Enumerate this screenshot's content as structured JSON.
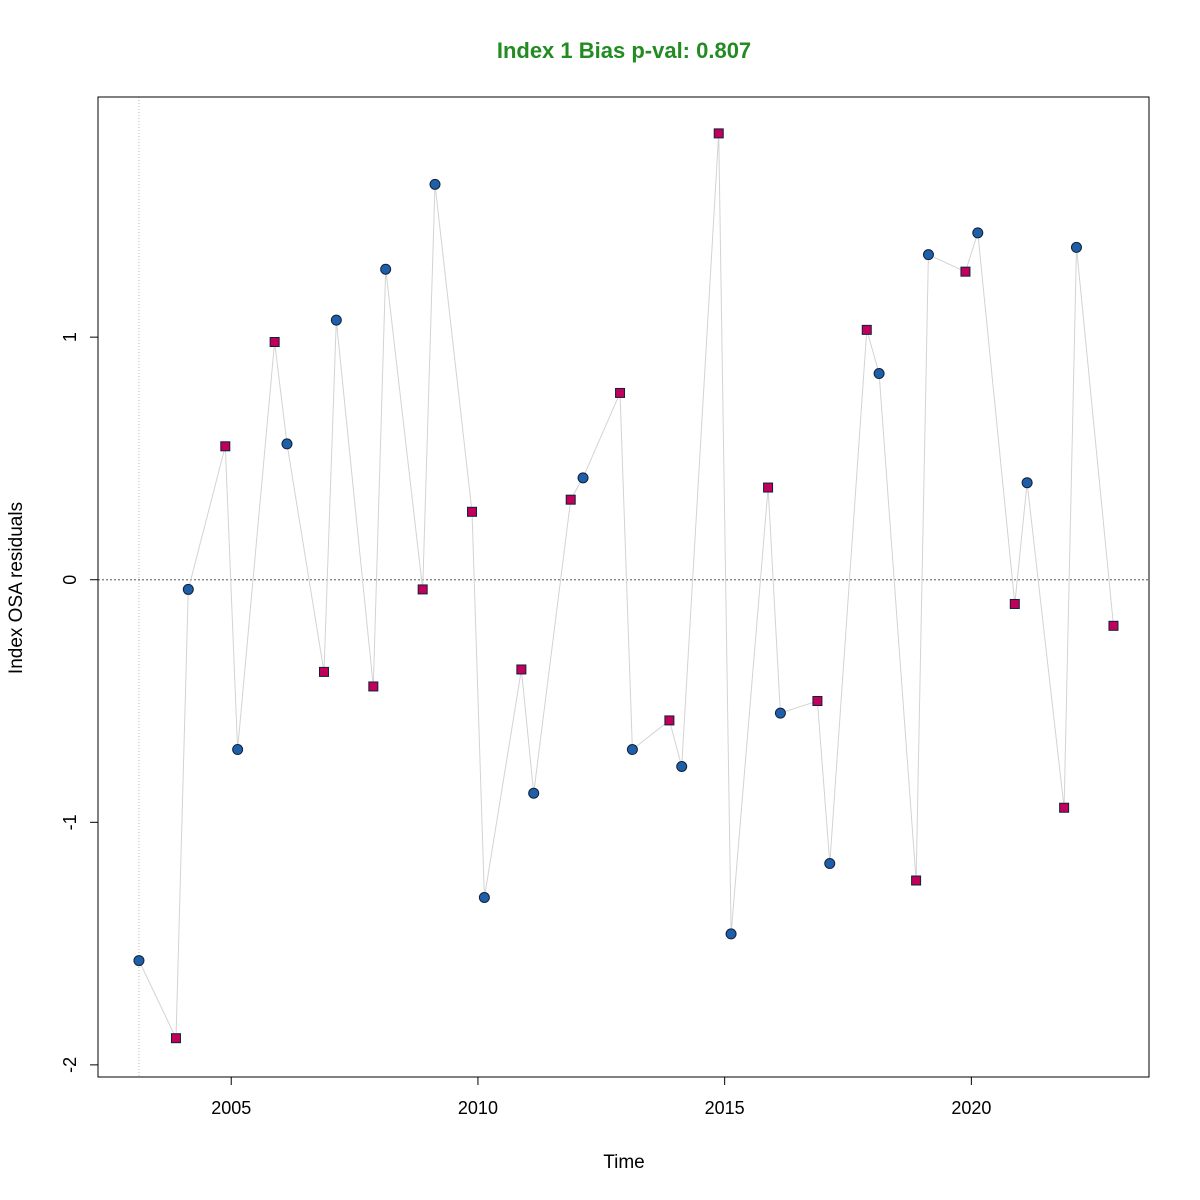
{
  "chart_data": {
    "type": "scatter",
    "title": "Index 1 Bias p-val: 0.807",
    "xlabel": "Time",
    "ylabel": "Index OSA residuals",
    "xlim": [
      2002.3,
      2023.6
    ],
    "ylim": [
      -2.05,
      1.99
    ],
    "x_ticks": [
      2005,
      2010,
      2015,
      2020
    ],
    "y_ticks": [
      -2,
      -1,
      0,
      1
    ],
    "reference_hline": 0,
    "reference_vline": 2003.13,
    "colors": {
      "title": "#228b22",
      "circle_fill": "#1f5fa8",
      "square_fill": "#c0005a",
      "marker_edge": "#10213a",
      "line": "#d3d3d3",
      "ref_line": "#777777"
    },
    "points": [
      {
        "x": 2003.13,
        "y": -1.57,
        "shape": "circle"
      },
      {
        "x": 2003.88,
        "y": -1.89,
        "shape": "square"
      },
      {
        "x": 2004.13,
        "y": -0.04,
        "shape": "circle"
      },
      {
        "x": 2004.88,
        "y": 0.55,
        "shape": "square"
      },
      {
        "x": 2005.13,
        "y": -0.7,
        "shape": "circle"
      },
      {
        "x": 2005.88,
        "y": 0.98,
        "shape": "square"
      },
      {
        "x": 2006.13,
        "y": 0.56,
        "shape": "circle"
      },
      {
        "x": 2006.88,
        "y": -0.38,
        "shape": "square"
      },
      {
        "x": 2007.13,
        "y": 1.07,
        "shape": "circle"
      },
      {
        "x": 2007.88,
        "y": -0.44,
        "shape": "square"
      },
      {
        "x": 2008.13,
        "y": 1.28,
        "shape": "circle"
      },
      {
        "x": 2008.88,
        "y": -0.04,
        "shape": "square"
      },
      {
        "x": 2009.13,
        "y": 1.63,
        "shape": "circle"
      },
      {
        "x": 2009.88,
        "y": 0.28,
        "shape": "square"
      },
      {
        "x": 2010.13,
        "y": -1.31,
        "shape": "circle"
      },
      {
        "x": 2010.88,
        "y": -0.37,
        "shape": "square"
      },
      {
        "x": 2011.13,
        "y": -0.88,
        "shape": "circle"
      },
      {
        "x": 2011.88,
        "y": 0.33,
        "shape": "square"
      },
      {
        "x": 2012.13,
        "y": 0.42,
        "shape": "circle"
      },
      {
        "x": 2012.88,
        "y": 0.77,
        "shape": "square"
      },
      {
        "x": 2013.13,
        "y": -0.7,
        "shape": "circle"
      },
      {
        "x": 2013.88,
        "y": -0.58,
        "shape": "square"
      },
      {
        "x": 2014.13,
        "y": -0.77,
        "shape": "circle"
      },
      {
        "x": 2014.88,
        "y": 1.84,
        "shape": "square"
      },
      {
        "x": 2015.13,
        "y": -1.46,
        "shape": "circle"
      },
      {
        "x": 2015.88,
        "y": 0.38,
        "shape": "square"
      },
      {
        "x": 2016.13,
        "y": -0.55,
        "shape": "circle"
      },
      {
        "x": 2016.88,
        "y": -0.5,
        "shape": "square"
      },
      {
        "x": 2017.13,
        "y": -1.17,
        "shape": "circle"
      },
      {
        "x": 2017.88,
        "y": 1.03,
        "shape": "square"
      },
      {
        "x": 2018.13,
        "y": 0.85,
        "shape": "circle"
      },
      {
        "x": 2018.88,
        "y": -1.24,
        "shape": "square"
      },
      {
        "x": 2019.13,
        "y": 1.34,
        "shape": "circle"
      },
      {
        "x": 2019.88,
        "y": 1.27,
        "shape": "square"
      },
      {
        "x": 2020.13,
        "y": 1.43,
        "shape": "circle"
      },
      {
        "x": 2020.88,
        "y": -0.1,
        "shape": "square"
      },
      {
        "x": 2021.13,
        "y": 0.4,
        "shape": "circle"
      },
      {
        "x": 2021.88,
        "y": -0.94,
        "shape": "square"
      },
      {
        "x": 2022.13,
        "y": 1.37,
        "shape": "circle"
      },
      {
        "x": 2022.88,
        "y": -0.19,
        "shape": "square"
      }
    ],
    "grid": false,
    "legend": "none"
  }
}
